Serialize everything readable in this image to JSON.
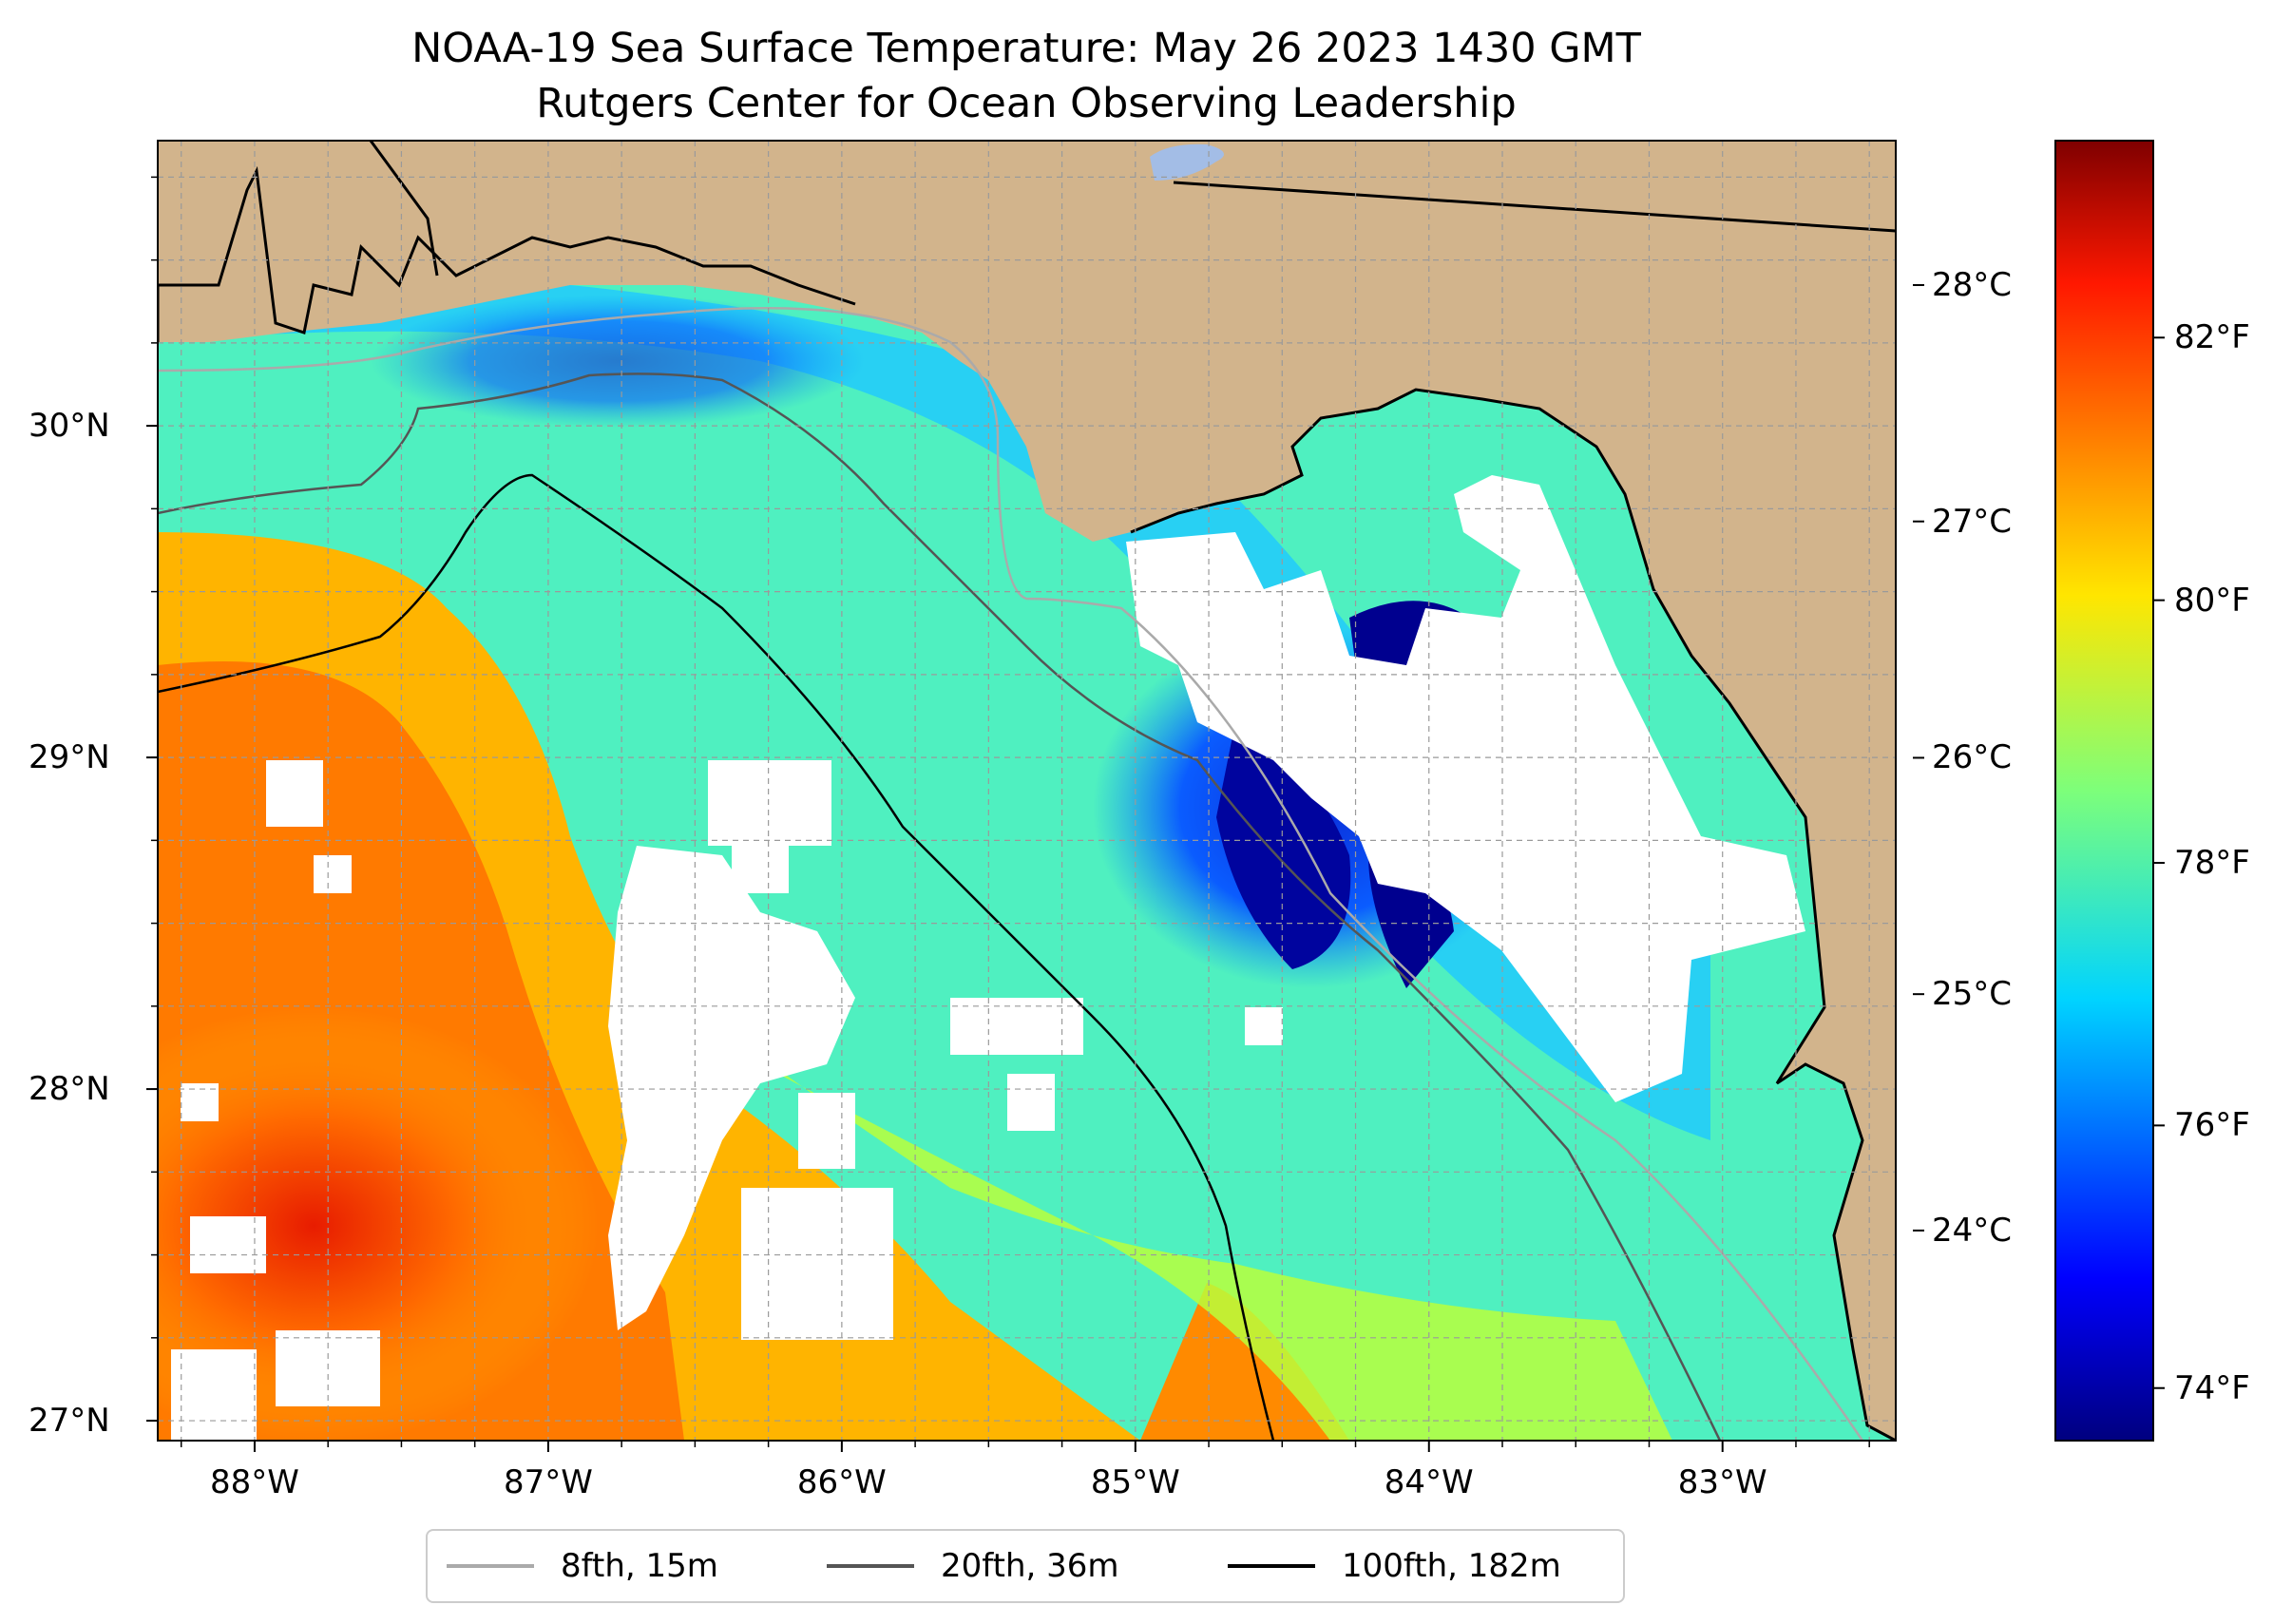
{
  "title": {
    "line1": "NOAA-19 Sea Surface Temperature: May 26 2023 1430 GMT",
    "line2": "Rutgers Center for Ocean Observing Leadership"
  },
  "map": {
    "land_color": "#d2b48c",
    "cloud_color": "#ffffff",
    "grid_color": "#9a9a9a",
    "lon_ticks": [
      {
        "value": -88,
        "label": "88°W"
      },
      {
        "value": -87,
        "label": "87°W"
      },
      {
        "value": -86,
        "label": "86°W"
      },
      {
        "value": -85,
        "label": "85°W"
      },
      {
        "value": -84,
        "label": "84°W"
      },
      {
        "value": -83,
        "label": "83°W"
      }
    ],
    "lat_ticks": [
      {
        "value": 27,
        "label": "27°N"
      },
      {
        "value": 28,
        "label": "28°N"
      },
      {
        "value": 29,
        "label": "29°N"
      },
      {
        "value": 30,
        "label": "30°N"
      }
    ],
    "extent": {
      "lon_min": -88.33,
      "lon_max": -82.41,
      "lat_min": 26.94,
      "lat_max": 30.86
    }
  },
  "legend": {
    "entries": [
      {
        "label": "8fth, 15m",
        "color": "#aaaaaa"
      },
      {
        "label": "20fth, 36m",
        "color": "#555555"
      },
      {
        "label": "100fth, 182m",
        "color": "#000000"
      }
    ]
  },
  "colorbar": {
    "colormap": "jet",
    "celsius_ticks": [
      {
        "value": 28,
        "label": "28°C"
      },
      {
        "value": 27,
        "label": "27°C"
      },
      {
        "value": 26,
        "label": "26°C"
      },
      {
        "value": 25,
        "label": "25°C"
      },
      {
        "value": 24,
        "label": "24°C"
      }
    ],
    "fahrenheit_ticks": [
      {
        "value": 82,
        "label": "82°F"
      },
      {
        "value": 80,
        "label": "80°F"
      },
      {
        "value": 78,
        "label": "78°F"
      },
      {
        "value": 76,
        "label": "76°F"
      },
      {
        "value": 74,
        "label": "74°F"
      }
    ],
    "range_f": [
      73.6,
      83.5
    ]
  }
}
